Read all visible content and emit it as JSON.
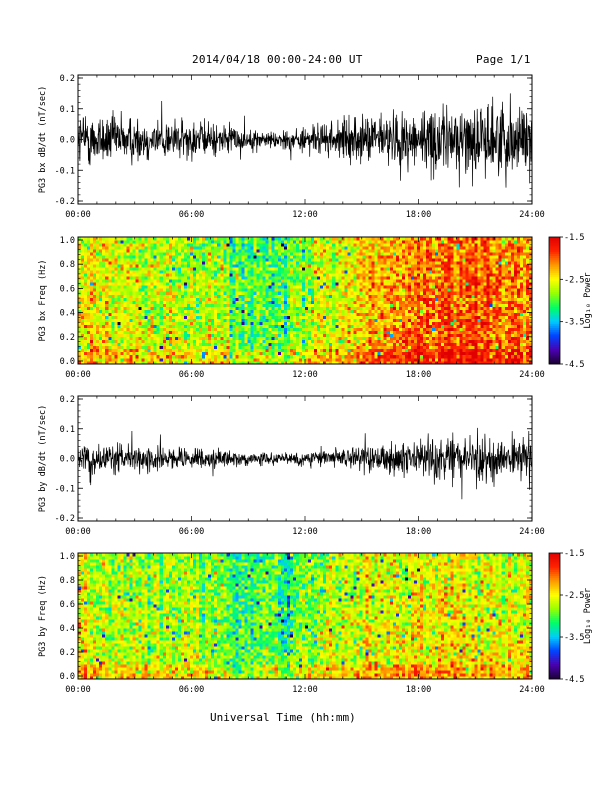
{
  "header": {
    "date_range": "2014/04/18  00:00-24:00 UT",
    "page": "Page 1/1"
  },
  "x_axis_label": "Universal Time (hh:mm)",
  "x_ticks": [
    "00:00",
    "06:00",
    "12:00",
    "18:00",
    "24:00"
  ],
  "colorbar": {
    "label": "Log₁₀ Power",
    "ticks": [
      "-1.5",
      "-2.5",
      "-3.5",
      "-4.5"
    ],
    "colors": [
      "#1a0033",
      "#4b00b0",
      "#0044ff",
      "#00ccff",
      "#00ff66",
      "#99ff00",
      "#ffff00",
      "#ff9900",
      "#ff2200",
      "#e00000"
    ]
  },
  "chart_data": [
    {
      "type": "line",
      "ylabel": "PG3 bx dB/dt (nT/sec)",
      "xlim": [
        0,
        24
      ],
      "ylim": [
        -0.2,
        0.2
      ],
      "yticks": [
        "0.2",
        "0.1",
        "0.0",
        "-0.1",
        "-0.2"
      ],
      "envelope": {
        "hours": [
          0,
          2,
          4,
          6,
          8,
          9,
          10,
          12,
          14,
          16,
          18,
          20,
          22,
          24
        ],
        "amplitude": [
          0.1,
          0.09,
          0.075,
          0.07,
          0.05,
          0.035,
          0.03,
          0.045,
          0.07,
          0.09,
          0.11,
          0.12,
          0.13,
          0.14
        ]
      }
    },
    {
      "type": "heatmap",
      "ylabel": "PG3 bx Freq (Hz)",
      "xlim": [
        0,
        24
      ],
      "ylim": [
        0.0,
        1.0
      ],
      "yticks": [
        "1.0",
        "0.8",
        "0.6",
        "0.4",
        "0.2",
        "0.0"
      ],
      "zlim": [
        -4.5,
        -1.5
      ],
      "zlabel": "Log₁₀ Power",
      "mean_log_power": {
        "hours": [
          0,
          2,
          4,
          6,
          8,
          9,
          10,
          11,
          12,
          14,
          16,
          18,
          20,
          22,
          24
        ],
        "values": [
          -2.4,
          -2.5,
          -2.6,
          -2.6,
          -2.75,
          -2.95,
          -2.9,
          -2.95,
          -2.7,
          -2.4,
          -2.2,
          -2.0,
          -1.9,
          -1.95,
          -2.1
        ]
      }
    },
    {
      "type": "line",
      "ylabel": "PG3 by dB/dt (nT/sec)",
      "xlim": [
        0,
        24
      ],
      "ylim": [
        -0.2,
        0.2
      ],
      "yticks": [
        "0.2",
        "0.1",
        "0.0",
        "-0.1",
        "-0.2"
      ],
      "envelope": {
        "hours": [
          0,
          2,
          4,
          6,
          8,
          9,
          10,
          12,
          14,
          16,
          18,
          20,
          22,
          24
        ],
        "amplitude": [
          0.05,
          0.05,
          0.045,
          0.04,
          0.03,
          0.022,
          0.02,
          0.025,
          0.035,
          0.05,
          0.065,
          0.08,
          0.085,
          0.08
        ]
      }
    },
    {
      "type": "heatmap",
      "ylabel": "PG3 by Freq (Hz)",
      "xlim": [
        0,
        24
      ],
      "ylim": [
        0.0,
        1.0
      ],
      "yticks": [
        "1.0",
        "0.8",
        "0.6",
        "0.4",
        "0.2",
        "0.0"
      ],
      "zlim": [
        -4.5,
        -1.5
      ],
      "zlabel": "Log₁₀ Power",
      "mean_log_power": {
        "hours": [
          0,
          2,
          4,
          6,
          8,
          9,
          10,
          11,
          12,
          14,
          16,
          18,
          20,
          22,
          24
        ],
        "values": [
          -2.5,
          -2.6,
          -2.7,
          -2.7,
          -2.85,
          -3.1,
          -2.95,
          -3.1,
          -2.8,
          -2.6,
          -2.5,
          -2.45,
          -2.4,
          -2.45,
          -2.5
        ]
      }
    }
  ]
}
